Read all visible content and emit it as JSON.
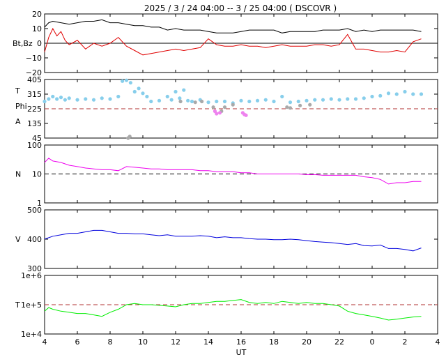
{
  "title": "2025 /  3 / 24   04:00 --  3 / 25   04:00 ( DSCOVR )",
  "x_axis": {
    "label": "UT",
    "ticks": [
      "4",
      "6",
      "8",
      "10",
      "12",
      "14",
      "16",
      "18",
      "20",
      "22",
      "0",
      "2",
      "4"
    ]
  },
  "colors": {
    "bt": "#000000",
    "bz": "#e00000",
    "theta": "#87ceeb",
    "phi_toward": "#a9a9a9",
    "phi_away": "#ee82ee",
    "density": "#ee00ee",
    "speed": "#0000dd",
    "temperature": "#00ee00",
    "reference_line": "#b03030"
  },
  "chart_data": [
    {
      "type": "line",
      "id": "magnetic_field",
      "ylabel": "Bt,Bz",
      "ylim": [
        -20,
        20
      ],
      "yticks": [
        "20",
        "10",
        "0",
        "−10",
        "−20"
      ],
      "series": [
        {
          "key": "bt",
          "x": [
            4.0,
            4.25,
            4.5,
            5.0,
            5.5,
            6.0,
            6.5,
            7.0,
            7.5,
            8.0,
            8.5,
            9.0,
            9.5,
            10.0,
            10.5,
            11.0,
            11.5,
            12.0,
            12.5,
            13.0,
            13.5,
            14.0,
            14.5,
            15.0,
            15.5,
            16.0,
            16.5,
            17.0,
            17.5,
            18.0,
            18.5,
            19.0,
            19.5,
            20.0,
            20.5,
            21.0,
            21.5,
            22.0,
            22.5,
            23.0,
            23.5,
            24.0,
            24.5,
            25.0,
            25.5,
            26.0,
            26.5,
            27.0
          ],
          "y": [
            11,
            14,
            15,
            14,
            13,
            14,
            15,
            15,
            16,
            14,
            14,
            13,
            12,
            12,
            11,
            11,
            9,
            10,
            9,
            9,
            9,
            8,
            7,
            7,
            7,
            8,
            9,
            9,
            9,
            9,
            7,
            8,
            8,
            8,
            8,
            9,
            9,
            9,
            10,
            8,
            9,
            8,
            9,
            9,
            9,
            9,
            9,
            8
          ]
        },
        {
          "key": "bz",
          "x": [
            4.0,
            4.25,
            4.5,
            4.75,
            5.0,
            5.25,
            5.5,
            6.0,
            6.5,
            7.0,
            7.5,
            8.0,
            8.5,
            9.0,
            9.5,
            10.0,
            10.5,
            11.0,
            11.5,
            12.0,
            12.5,
            13.0,
            13.5,
            14.0,
            14.5,
            15.0,
            15.5,
            16.0,
            16.5,
            17.0,
            17.5,
            18.0,
            18.5,
            19.0,
            19.5,
            20.0,
            20.5,
            21.0,
            21.5,
            22.0,
            22.5,
            23.0,
            23.5,
            24.0,
            24.5,
            25.0,
            25.5,
            26.0,
            26.5,
            27.0
          ],
          "y": [
            -6,
            4,
            10,
            5,
            8,
            2,
            -1,
            2,
            -4,
            0,
            -2,
            0,
            4,
            -2,
            -5,
            -8,
            -7,
            -6,
            -5,
            -4,
            -5,
            -4,
            -3,
            3,
            -1,
            -2,
            -2,
            -1,
            -2,
            -2,
            -3,
            -2,
            -1,
            -2,
            -2,
            -2,
            -1,
            -1,
            -2,
            -1,
            6,
            -4,
            -4,
            -5,
            -6,
            -6,
            -5,
            -6,
            1,
            3
          ]
        }
      ],
      "reference_lines": [
        0
      ]
    },
    {
      "type": "scatter",
      "id": "field_angles",
      "ylabels": [
        "T",
        "Phi",
        "A"
      ],
      "ylim": [
        45,
        405
      ],
      "yticks": [
        "405",
        "315",
        "225",
        "135",
        "45"
      ],
      "series": [
        {
          "key": "theta",
          "x": [
            4.0,
            4.25,
            4.5,
            4.75,
            5.0,
            5.25,
            5.5,
            6.0,
            6.5,
            7.0,
            7.5,
            8.0,
            8.5,
            8.75,
            9.0,
            9.25,
            9.5,
            9.75,
            10.0,
            10.25,
            10.5,
            11.0,
            11.5,
            11.75,
            12.0,
            12.25,
            12.5,
            12.75,
            13.0,
            13.5,
            14.0,
            14.5,
            15.0,
            15.5,
            16.0,
            16.5,
            17.0,
            17.5,
            18.0,
            18.5,
            19.0,
            19.5,
            20.0,
            20.5,
            21.0,
            21.5,
            22.0,
            22.5,
            23.0,
            23.5,
            24.0,
            24.5,
            25.0,
            25.5,
            26.0,
            26.5,
            27.0
          ],
          "y": [
            270,
            285,
            300,
            285,
            295,
            280,
            290,
            280,
            285,
            280,
            290,
            285,
            300,
            395,
            400,
            385,
            330,
            350,
            320,
            300,
            270,
            275,
            300,
            280,
            330,
            290,
            340,
            275,
            270,
            280,
            265,
            270,
            270,
            260,
            275,
            270,
            275,
            280,
            270,
            300,
            265,
            270,
            275,
            280,
            280,
            285,
            280,
            285,
            285,
            290,
            300,
            305,
            320,
            315,
            330,
            315,
            315
          ]
        },
        {
          "key": "phi_toward",
          "x": [
            9.1,
            9.2,
            12.3,
            13.2,
            13.6,
            14.3,
            14.8,
            15.0,
            15.5,
            18.8,
            19.0,
            19.6,
            20.2
          ],
          "y": [
            45,
            55,
            270,
            265,
            270,
            235,
            210,
            235,
            250,
            235,
            230,
            245,
            250
          ]
        },
        {
          "key": "phi_away",
          "x": [
            14.4,
            14.5,
            14.7,
            16.1,
            16.2,
            16.3
          ],
          "y": [
            210,
            195,
            200,
            200,
            190,
            185
          ]
        }
      ],
      "reference_lines": [
        225
      ]
    },
    {
      "type": "line",
      "id": "density",
      "ylabel": "N",
      "scale": "log",
      "ylim": [
        1,
        100
      ],
      "yticks": [
        "100",
        "10",
        "1"
      ],
      "series": [
        {
          "key": "density",
          "x": [
            4.0,
            4.25,
            4.5,
            5.0,
            5.5,
            6.0,
            6.5,
            7.0,
            7.5,
            8.0,
            8.5,
            9.0,
            9.5,
            10.0,
            10.5,
            11.0,
            11.5,
            12.0,
            12.5,
            13.0,
            13.5,
            14.0,
            14.5,
            15.0,
            15.5,
            16.0,
            16.5,
            17.0,
            17.5,
            18.0,
            18.5,
            19.0,
            19.5,
            20.0,
            20.5,
            21.0,
            21.5,
            22.0,
            22.5,
            23.0,
            23.5,
            24.0,
            24.5,
            25.0,
            25.5,
            26.0,
            26.5,
            27.0
          ],
          "y": [
            25,
            35,
            28,
            25,
            20,
            18,
            16,
            15,
            14,
            14,
            13,
            18,
            17,
            16,
            15,
            15,
            14,
            14,
            14,
            14,
            13,
            13,
            12,
            12,
            12,
            11,
            11,
            10,
            10,
            10,
            10,
            10,
            10,
            9.5,
            9.5,
            9,
            9,
            9,
            9,
            9,
            8,
            7.5,
            6.5,
            4.5,
            5,
            5,
            5.5,
            5.5
          ]
        }
      ],
      "reference_lines": [
        10
      ]
    },
    {
      "type": "line",
      "id": "speed",
      "ylabel": "V",
      "ylim": [
        300,
        500
      ],
      "yticks": [
        "500",
        "400",
        "300"
      ],
      "series": [
        {
          "key": "speed",
          "x": [
            4.0,
            4.25,
            4.5,
            5.0,
            5.5,
            6.0,
            6.5,
            7.0,
            7.5,
            8.0,
            8.5,
            9.0,
            9.5,
            10.0,
            10.5,
            11.0,
            11.5,
            12.0,
            12.5,
            13.0,
            13.5,
            14.0,
            14.5,
            15.0,
            15.5,
            16.0,
            16.5,
            17.0,
            17.5,
            18.0,
            18.5,
            19.0,
            19.5,
            20.0,
            20.5,
            21.0,
            21.5,
            22.0,
            22.5,
            23.0,
            23.5,
            24.0,
            24.5,
            25.0,
            25.5,
            26.0,
            26.5,
            27.0
          ],
          "y": [
            400,
            405,
            410,
            415,
            420,
            420,
            425,
            430,
            430,
            425,
            420,
            420,
            418,
            418,
            415,
            412,
            415,
            410,
            410,
            410,
            412,
            410,
            405,
            408,
            405,
            405,
            402,
            400,
            400,
            398,
            398,
            400,
            398,
            395,
            392,
            390,
            388,
            385,
            382,
            385,
            378,
            377,
            380,
            368,
            368,
            365,
            360,
            370
          ]
        }
      ]
    },
    {
      "type": "line",
      "id": "temperature",
      "ylabel": "T",
      "scale": "log",
      "ylim": [
        10000,
        1000000
      ],
      "yticks": [
        "1e+6",
        "1e+5",
        "1e+4"
      ],
      "series": [
        {
          "key": "temperature",
          "x": [
            4.0,
            4.25,
            4.5,
            5.0,
            5.5,
            6.0,
            6.5,
            7.0,
            7.5,
            8.0,
            8.5,
            9.0,
            9.5,
            10.0,
            10.5,
            11.0,
            11.5,
            12.0,
            12.5,
            13.0,
            13.5,
            14.0,
            14.5,
            15.0,
            15.5,
            16.0,
            16.5,
            17.0,
            17.5,
            18.0,
            18.5,
            19.0,
            19.5,
            20.0,
            20.5,
            21.0,
            21.5,
            22.0,
            22.5,
            23.0,
            23.5,
            24.0,
            24.5,
            25.0,
            25.5,
            26.0,
            26.5,
            27.0
          ],
          "y": [
            60000,
            80000,
            70000,
            60000,
            55000,
            50000,
            50000,
            45000,
            40000,
            55000,
            70000,
            100000,
            110000,
            100000,
            100000,
            95000,
            90000,
            85000,
            100000,
            110000,
            110000,
            120000,
            130000,
            130000,
            140000,
            150000,
            120000,
            110000,
            120000,
            110000,
            130000,
            120000,
            110000,
            120000,
            110000,
            110000,
            100000,
            90000,
            60000,
            50000,
            45000,
            40000,
            35000,
            30000,
            32000,
            35000,
            38000,
            40000
          ]
        }
      ],
      "reference_lines": [
        100000
      ]
    }
  ]
}
